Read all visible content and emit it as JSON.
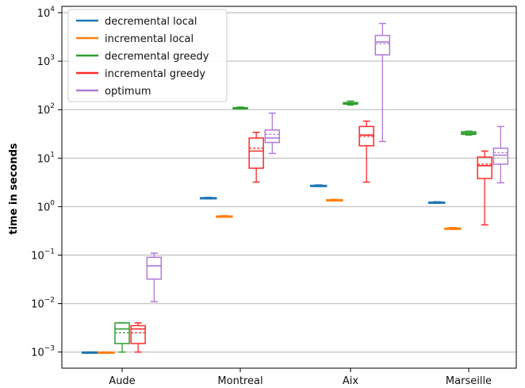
{
  "chart_data": {
    "type": "box",
    "title": "",
    "xlabel": "",
    "ylabel": "time in seconds",
    "yscale": "log",
    "ylim": [
      0.0005,
      10000
    ],
    "yticks": [
      {
        "value": 0.001,
        "label": "10",
        "exp": "-3"
      },
      {
        "value": 0.01,
        "label": "10",
        "exp": "-2"
      },
      {
        "value": 0.1,
        "label": "10",
        "exp": "-1"
      },
      {
        "value": 1,
        "label": "10",
        "exp": "0"
      },
      {
        "value": 10,
        "label": "10",
        "exp": "1"
      },
      {
        "value": 100,
        "label": "10",
        "exp": "2"
      },
      {
        "value": 1000,
        "label": "10",
        "exp": "3"
      },
      {
        "value": 10000,
        "label": "10",
        "exp": "4"
      }
    ],
    "grid": "horizontal",
    "legend_position": "top-left",
    "categories": [
      "Aude",
      "Montreal",
      "Aix",
      "Marseille"
    ],
    "series": [
      {
        "name": "decremental local",
        "color": "#1f77b4",
        "boxes": [
          {
            "whislo": 0.001,
            "q1": 0.001,
            "med": 0.001,
            "mean": 0.001,
            "q3": 0.001,
            "whishi": 0.001
          },
          {
            "whislo": 1.45,
            "q1": 1.47,
            "med": 1.5,
            "mean": 1.5,
            "q3": 1.53,
            "whishi": 1.55
          },
          {
            "whislo": 2.6,
            "q1": 2.65,
            "med": 2.7,
            "mean": 2.7,
            "q3": 2.75,
            "whishi": 2.8
          },
          {
            "whislo": 1.18,
            "q1": 1.2,
            "med": 1.22,
            "mean": 1.22,
            "q3": 1.24,
            "whishi": 1.26
          }
        ]
      },
      {
        "name": "incremental local",
        "color": "#ff7f0e",
        "boxes": [
          {
            "whislo": 0.001,
            "q1": 0.001,
            "med": 0.001,
            "mean": 0.001,
            "q3": 0.001,
            "whishi": 0.001
          },
          {
            "whislo": 0.61,
            "q1": 0.62,
            "med": 0.63,
            "mean": 0.63,
            "q3": 0.64,
            "whishi": 0.65
          },
          {
            "whislo": 1.33,
            "q1": 1.35,
            "med": 1.37,
            "mean": 1.37,
            "q3": 1.39,
            "whishi": 1.41
          },
          {
            "whislo": 0.34,
            "q1": 0.35,
            "med": 0.355,
            "mean": 0.355,
            "q3": 0.36,
            "whishi": 0.37
          }
        ]
      },
      {
        "name": "decremental greedy",
        "color": "#2ca02c",
        "boxes": [
          {
            "whislo": 0.001,
            "q1": 0.0015,
            "med": 0.003,
            "mean": 0.0025,
            "q3": 0.004,
            "whishi": 0.004
          },
          {
            "whislo": 104,
            "q1": 106,
            "med": 108,
            "mean": 108,
            "q3": 110,
            "whishi": 113
          },
          {
            "whislo": 125,
            "q1": 130,
            "med": 135,
            "mean": 135,
            "q3": 140,
            "whishi": 150
          },
          {
            "whislo": 30,
            "q1": 31,
            "med": 33,
            "mean": 33,
            "q3": 35,
            "whishi": 36
          }
        ]
      },
      {
        "name": "incremental greedy",
        "color": "#ff2a2a",
        "boxes": [
          {
            "whislo": 0.001,
            "q1": 0.0015,
            "med": 0.003,
            "mean": 0.0025,
            "q3": 0.0035,
            "whishi": 0.004
          },
          {
            "whislo": 3.2,
            "q1": 6.2,
            "med": 14,
            "mean": 16,
            "q3": 26,
            "whishi": 34
          },
          {
            "whislo": 3.2,
            "q1": 18,
            "med": 30,
            "mean": 28,
            "q3": 45,
            "whishi": 58
          },
          {
            "whislo": 0.42,
            "q1": 3.8,
            "med": 7,
            "mean": 7.5,
            "q3": 10.5,
            "whishi": 14
          }
        ]
      },
      {
        "name": "optimum",
        "color": "#b07ad8",
        "boxes": [
          {
            "whislo": 0.011,
            "q1": 0.032,
            "med": 0.06,
            "mean": 0.06,
            "q3": 0.09,
            "whishi": 0.11
          },
          {
            "whislo": 12.5,
            "q1": 21,
            "med": 26,
            "mean": 31,
            "q3": 38,
            "whishi": 85
          },
          {
            "whislo": 22,
            "q1": 1350,
            "med": 2500,
            "mean": 2300,
            "q3": 3400,
            "whishi": 6000
          },
          {
            "whislo": 3.1,
            "q1": 7.5,
            "med": 11.5,
            "mean": 13,
            "q3": 16,
            "whishi": 45
          }
        ]
      }
    ]
  }
}
